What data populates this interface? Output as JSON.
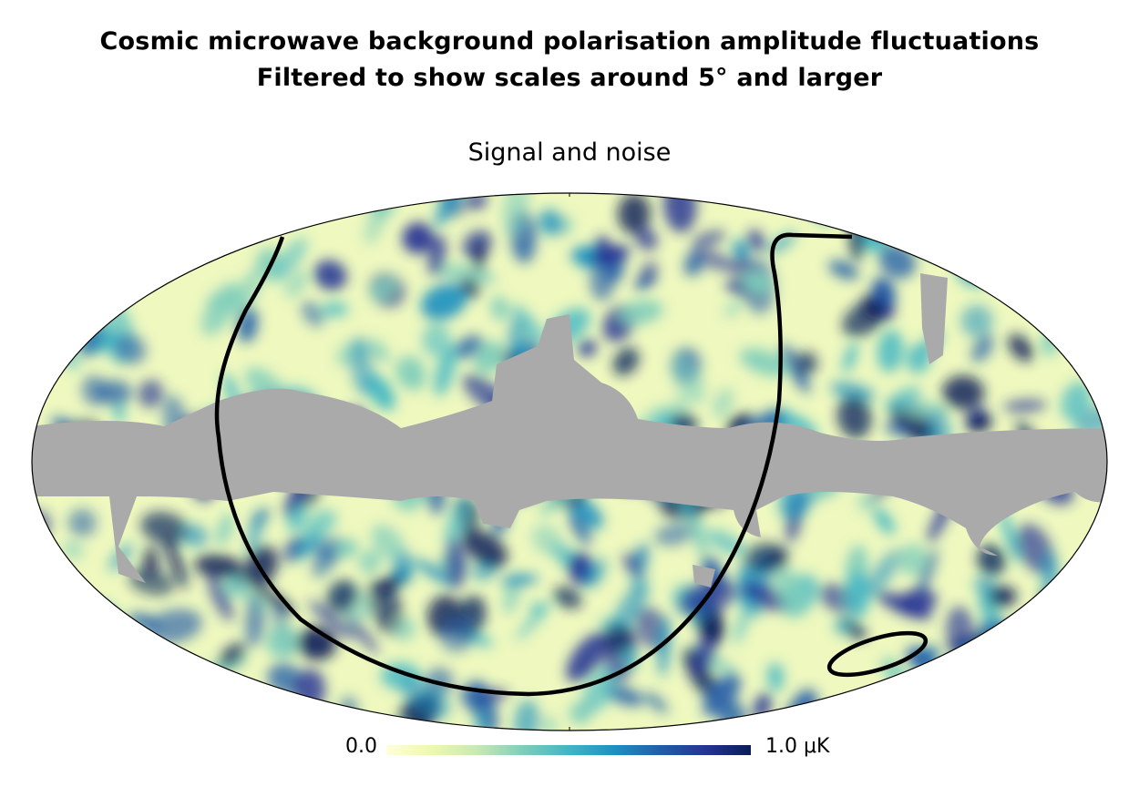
{
  "title_line1": "Cosmic microwave background polarisation amplitude fluctuations",
  "title_line2": "Filtered to show scales around 5° and larger",
  "subtitle": "Signal and noise",
  "colorbar": {
    "min_label": "0.0",
    "max_label": "1.0 μK",
    "min_value": 0.0,
    "max_value": 1.0,
    "unit": "μK",
    "colors": [
      "#ffffd9",
      "#edf8b1",
      "#c7e9b4",
      "#7fcdbb",
      "#41b6c4",
      "#1d91c0",
      "#225ea8",
      "#253494",
      "#081d58"
    ]
  },
  "projection": "mollweide",
  "mask_color": "#aaaaaa",
  "contour_color": "#000000"
}
